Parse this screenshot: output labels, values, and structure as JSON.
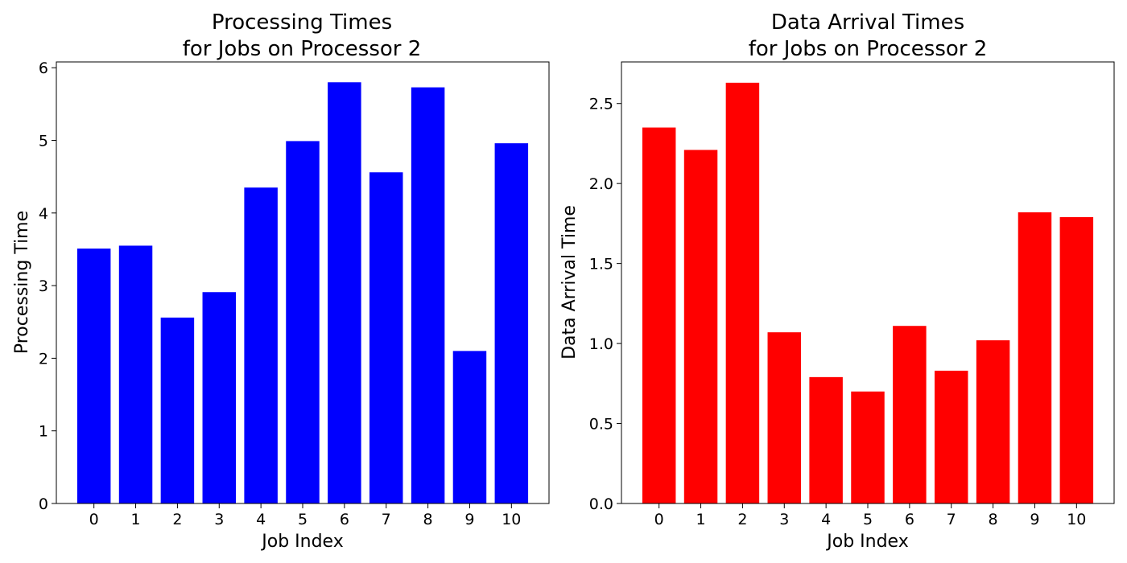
{
  "chart_data": [
    {
      "type": "bar",
      "title_lines": [
        "Processing Times",
        "for Jobs on Processor 2"
      ],
      "xlabel": "Job Index",
      "ylabel": "Processing Time",
      "categories": [
        "0",
        "1",
        "2",
        "3",
        "4",
        "5",
        "6",
        "7",
        "8",
        "9",
        "10"
      ],
      "values": [
        3.51,
        3.55,
        2.56,
        2.91,
        4.35,
        4.99,
        5.8,
        4.56,
        5.73,
        2.1,
        4.96
      ],
      "ylim": [
        0,
        6.08
      ],
      "yticks": [
        "0",
        "1",
        "2",
        "3",
        "4",
        "5",
        "6"
      ],
      "color": "#0000ff",
      "grid": false,
      "legend": "none"
    },
    {
      "type": "bar",
      "title_lines": [
        "Data Arrival Times",
        "for Jobs on Processor 2"
      ],
      "xlabel": "Job Index",
      "ylabel": "Data Arrival Time",
      "categories": [
        "0",
        "1",
        "2",
        "3",
        "4",
        "5",
        "6",
        "7",
        "8",
        "9",
        "10"
      ],
      "values": [
        2.35,
        2.21,
        2.63,
        1.07,
        0.79,
        0.7,
        1.11,
        0.83,
        1.02,
        1.82,
        1.79
      ],
      "ylim": [
        0,
        2.76
      ],
      "yticks": [
        "0.0",
        "0.5",
        "1.0",
        "1.5",
        "2.0",
        "2.5"
      ],
      "color": "#ff0000",
      "grid": false,
      "legend": "none"
    }
  ]
}
